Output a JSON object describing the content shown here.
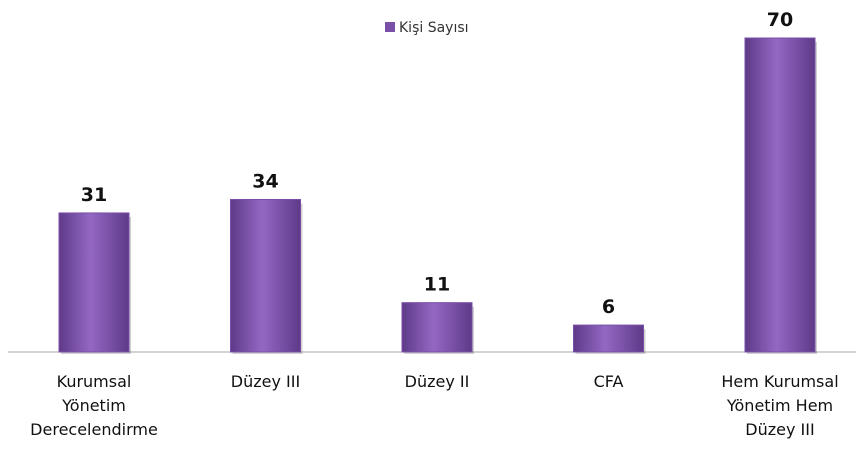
{
  "chart_data": {
    "type": "bar",
    "legend": "Kişi Sayısı",
    "legend_position": "top",
    "series": [
      {
        "name": "Kişi Sayısı",
        "color": "#7a4fa8",
        "values": [
          31,
          34,
          11,
          6,
          70
        ]
      }
    ],
    "categories": [
      "Kurumsal Yönetim Derecelendirme",
      "Düzey III",
      "Düzey II",
      "CFA",
      "Hem Kurumsal Yönetim Hem Düzey III"
    ]
  }
}
